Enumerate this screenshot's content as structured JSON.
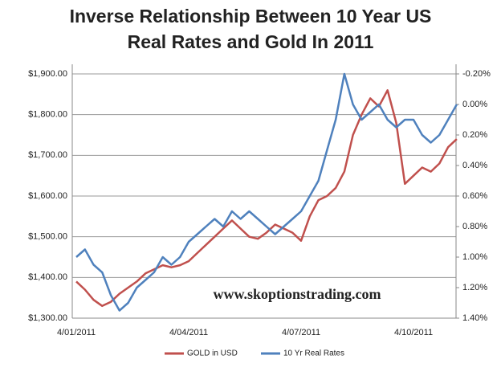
{
  "chart_data": {
    "type": "line",
    "title": "Inverse Relationship Between 10 Year US Real Rates and Gold In 2011",
    "annotation": "www.skoptionstrading.com",
    "categories": [
      "4/01/2011",
      null,
      null,
      null,
      null,
      null,
      null,
      null,
      null,
      null,
      null,
      null,
      null,
      "4/04/2011",
      null,
      null,
      null,
      null,
      null,
      null,
      null,
      null,
      null,
      null,
      null,
      null,
      "4/07/2011",
      null,
      null,
      null,
      null,
      null,
      null,
      null,
      null,
      null,
      null,
      null,
      null,
      "4/10/2011",
      null,
      null,
      null,
      null,
      null
    ],
    "series": [
      {
        "name": "GOLD in USD",
        "color": "#c0504d",
        "values": [
          1390,
          1370,
          1345,
          1330,
          1340,
          1360,
          1375,
          1390,
          1410,
          1420,
          1430,
          1425,
          1430,
          1440,
          1460,
          1480,
          1500,
          1520,
          1540,
          1520,
          1500,
          1495,
          1510,
          1530,
          1520,
          1510,
          1490,
          1550,
          1590,
          1600,
          1620,
          1660,
          1750,
          1800,
          1840,
          1820,
          1860,
          1780,
          1630,
          1650,
          1670,
          1660,
          1680,
          1720,
          1740
        ]
      },
      {
        "name": "10 Yr Real Rates",
        "color": "#4f81bd",
        "axis": "y2",
        "values": [
          1.0,
          0.95,
          1.05,
          1.1,
          1.25,
          1.35,
          1.3,
          1.2,
          1.15,
          1.1,
          1.0,
          1.05,
          1.0,
          0.9,
          0.85,
          0.8,
          0.75,
          0.8,
          0.7,
          0.75,
          0.7,
          0.75,
          0.8,
          0.85,
          0.8,
          0.75,
          0.7,
          0.6,
          0.5,
          0.3,
          0.1,
          -0.2,
          0.0,
          0.1,
          0.05,
          0.0,
          0.1,
          0.15,
          0.1,
          0.1,
          0.2,
          0.25,
          0.2,
          0.1,
          0.0
        ]
      }
    ],
    "ylim": [
      1300,
      1900
    ],
    "yticks": [
      {
        "value": 1300,
        "label": "$1,300.00"
      },
      {
        "value": 1400,
        "label": "$1,400.00"
      },
      {
        "value": 1500,
        "label": "$1,500.00"
      },
      {
        "value": 1600,
        "label": "$1,600.00"
      },
      {
        "value": 1700,
        "label": "$1,700.00"
      },
      {
        "value": 1800,
        "label": "$1,800.00"
      },
      {
        "value": 1900,
        "label": "$1,900.00"
      }
    ],
    "y2lim": [
      1.4,
      -0.2
    ],
    "y2ticks": [
      {
        "value": 1.4,
        "label": "1.40%"
      },
      {
        "value": 1.2,
        "label": "1.20%"
      },
      {
        "value": 1.0,
        "label": "1.00%"
      },
      {
        "value": 0.8,
        "label": "0.80%"
      },
      {
        "value": 0.6,
        "label": "0.60%"
      },
      {
        "value": 0.4,
        "label": "0.40%"
      },
      {
        "value": 0.2,
        "label": "0.20%"
      },
      {
        "value": 0.0,
        "label": "0.00%"
      },
      {
        "value": -0.2,
        "label": "-0.20%"
      }
    ],
    "grid": true
  }
}
